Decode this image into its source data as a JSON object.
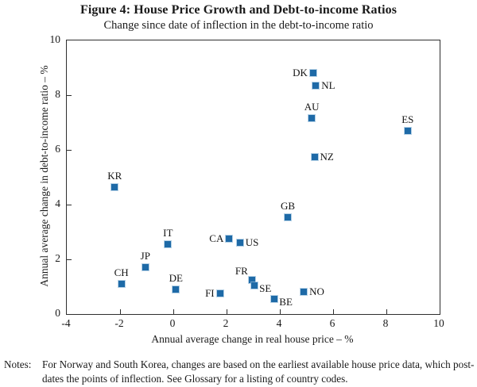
{
  "figure": {
    "title": "Figure 4: House Price Growth and Debt-to-income Ratios",
    "subtitle": "Change since date of inflection in the debt-to-income ratio",
    "notes_label": "Notes:",
    "notes_text": "For Norway and South Korea, changes are based on the earliest available house price data, which post-dates the points of inflection. See Glossary for a listing of country codes."
  },
  "chart_data": {
    "type": "scatter",
    "title": "Figure 4: House Price Growth and Debt-to-income Ratios",
    "subtitle": "Change since date of inflection in the debt-to-income ratio",
    "xlabel": "Annual average change in real house price – %",
    "ylabel": "Annual average change in debt-to-income ratio – %",
    "xlim": [
      -4,
      10
    ],
    "ylim": [
      0,
      10
    ],
    "x_ticks": [
      -4,
      -2,
      0,
      2,
      4,
      6,
      8,
      10
    ],
    "y_ticks": [
      0,
      2,
      4,
      6,
      8,
      10
    ],
    "grid": false,
    "legend": "none",
    "marker": {
      "shape": "square",
      "color": "#1e6aa7",
      "size": 8
    },
    "points": [
      {
        "label": "KR",
        "x": -2.2,
        "y": 4.65,
        "label_pos": "above"
      },
      {
        "label": "CH",
        "x": -1.95,
        "y": 1.1,
        "label_pos": "above"
      },
      {
        "label": "JP",
        "x": -1.05,
        "y": 1.7,
        "label_pos": "above"
      },
      {
        "label": "IT",
        "x": -0.2,
        "y": 2.55,
        "label_pos": "above"
      },
      {
        "label": "DE",
        "x": 0.1,
        "y": 0.9,
        "label_pos": "above"
      },
      {
        "label": "FI",
        "x": 1.75,
        "y": 0.75,
        "label_pos": "left"
      },
      {
        "label": "CA",
        "x": 2.1,
        "y": 2.75,
        "label_pos": "left"
      },
      {
        "label": "US",
        "x": 2.5,
        "y": 2.6,
        "label_pos": "right"
      },
      {
        "label": "FR",
        "x": 2.95,
        "y": 1.25,
        "label_pos": "above-left"
      },
      {
        "label": "SE",
        "x": 3.05,
        "y": 1.05,
        "label_pos": "below-right"
      },
      {
        "label": "BE",
        "x": 3.8,
        "y": 0.55,
        "label_pos": "below-right"
      },
      {
        "label": "GB",
        "x": 4.3,
        "y": 3.55,
        "label_pos": "above"
      },
      {
        "label": "NO",
        "x": 4.9,
        "y": 0.8,
        "label_pos": "right"
      },
      {
        "label": "NZ",
        "x": 5.3,
        "y": 5.75,
        "label_pos": "right"
      },
      {
        "label": "AU",
        "x": 5.2,
        "y": 7.15,
        "label_pos": "above"
      },
      {
        "label": "DK",
        "x": 5.25,
        "y": 8.8,
        "label_pos": "left"
      },
      {
        "label": "NL",
        "x": 5.35,
        "y": 8.35,
        "label_pos": "right"
      },
      {
        "label": "ES",
        "x": 8.8,
        "y": 6.7,
        "label_pos": "above"
      }
    ]
  }
}
